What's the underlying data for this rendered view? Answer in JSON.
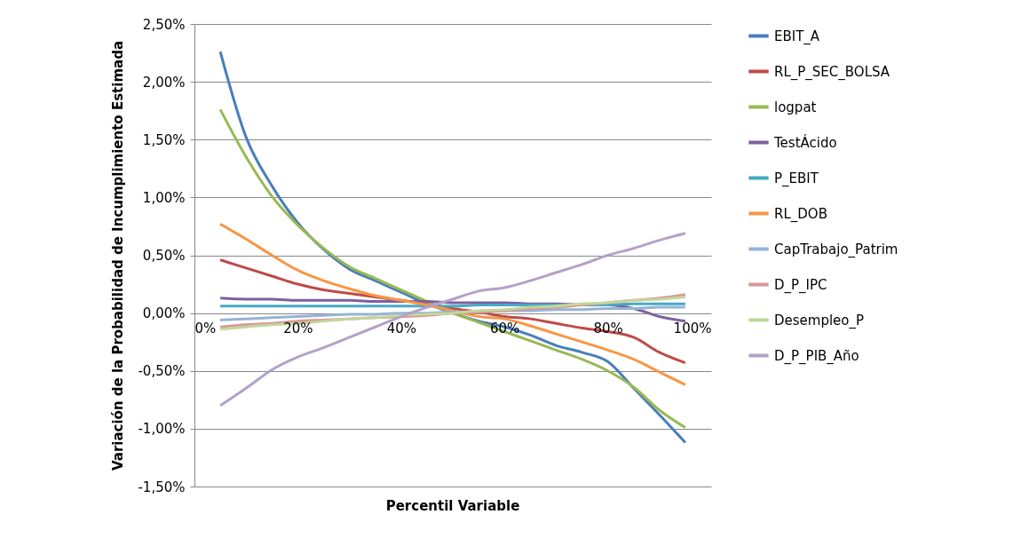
{
  "chart_data": {
    "type": "line",
    "xlabel": "Percentil Variable",
    "ylabel": "Variación de la Probabilidad de Incumplimiento Estimada",
    "x": [
      5,
      10,
      15,
      20,
      25,
      30,
      35,
      40,
      45,
      50,
      55,
      60,
      65,
      70,
      75,
      80,
      85,
      90,
      95
    ],
    "series": [
      {
        "name": "EBIT_A",
        "color": "#4a7ebb",
        "values": [
          2.26,
          1.52,
          1.1,
          0.78,
          0.55,
          0.38,
          0.28,
          0.18,
          0.08,
          0.0,
          -0.07,
          -0.12,
          -0.19,
          -0.28,
          -0.34,
          -0.42,
          -0.65,
          -0.88,
          -1.12
        ]
      },
      {
        "name": "RL_P_SEC_BOLSA",
        "color": "#be4b48",
        "values": [
          0.46,
          0.39,
          0.32,
          0.25,
          0.2,
          0.17,
          0.14,
          0.11,
          0.08,
          0.04,
          0.01,
          -0.03,
          -0.05,
          -0.09,
          -0.13,
          -0.16,
          -0.21,
          -0.34,
          -0.43
        ]
      },
      {
        "name": "logpat",
        "color": "#98b954",
        "values": [
          1.76,
          1.35,
          1.01,
          0.76,
          0.56,
          0.4,
          0.3,
          0.2,
          0.1,
          0.0,
          -0.08,
          -0.16,
          -0.24,
          -0.32,
          -0.4,
          -0.5,
          -0.64,
          -0.84,
          -0.99
        ]
      },
      {
        "name": "TestÁcido",
        "color": "#7d60a0",
        "values": [
          0.13,
          0.12,
          0.12,
          0.11,
          0.11,
          0.11,
          0.1,
          0.1,
          0.1,
          0.09,
          0.09,
          0.09,
          0.08,
          0.08,
          0.07,
          0.07,
          0.04,
          -0.03,
          -0.07
        ]
      },
      {
        "name": "P_EBIT",
        "color": "#46aac5",
        "values": [
          0.06,
          0.06,
          0.06,
          0.06,
          0.06,
          0.06,
          0.06,
          0.06,
          0.06,
          0.06,
          0.07,
          0.07,
          0.07,
          0.07,
          0.07,
          0.07,
          0.08,
          0.08,
          0.08
        ]
      },
      {
        "name": "RL_DOB",
        "color": "#f79646",
        "values": [
          0.77,
          0.64,
          0.5,
          0.37,
          0.28,
          0.21,
          0.15,
          0.11,
          0.07,
          0.02,
          -0.03,
          -0.05,
          -0.11,
          -0.18,
          -0.25,
          -0.32,
          -0.4,
          -0.51,
          -0.62
        ]
      },
      {
        "name": "CapTrabajo_Patrim",
        "color": "#95b3d7",
        "values": [
          -0.06,
          -0.05,
          -0.04,
          -0.03,
          -0.02,
          -0.01,
          -0.01,
          0.0,
          0.0,
          0.01,
          0.01,
          0.02,
          0.02,
          0.03,
          0.03,
          0.04,
          0.04,
          0.05,
          0.05
        ]
      },
      {
        "name": "D_P_IPC",
        "color": "#d99694",
        "values": [
          -0.12,
          -0.1,
          -0.09,
          -0.07,
          -0.06,
          -0.05,
          -0.04,
          -0.03,
          -0.02,
          0.0,
          0.01,
          0.02,
          0.04,
          0.05,
          0.07,
          0.09,
          0.11,
          0.13,
          0.16
        ]
      },
      {
        "name": "Desempleo_P",
        "color": "#c3d69b",
        "values": [
          -0.14,
          -0.12,
          -0.1,
          -0.09,
          -0.07,
          -0.05,
          -0.04,
          -0.02,
          -0.01,
          0.0,
          0.02,
          0.03,
          0.05,
          0.06,
          0.08,
          0.09,
          0.11,
          0.12,
          0.14
        ]
      },
      {
        "name": "D_P_PIB_Año",
        "color": "#b3a2c7",
        "values": [
          -0.8,
          -0.65,
          -0.49,
          -0.38,
          -0.3,
          -0.21,
          -0.12,
          -0.03,
          0.05,
          0.12,
          0.19,
          0.22,
          0.28,
          0.35,
          0.42,
          0.5,
          0.56,
          0.63,
          0.69
        ]
      }
    ],
    "xlim": [
      0,
      100
    ],
    "xticks": [
      {
        "value": 0,
        "label": "0%"
      },
      {
        "value": 20,
        "label": "20%"
      },
      {
        "value": 40,
        "label": "40%"
      },
      {
        "value": 60,
        "label": "60%"
      },
      {
        "value": 80,
        "label": "80%"
      },
      {
        "value": 100,
        "label": "100%"
      }
    ],
    "ylim": [
      -1.5,
      2.5
    ],
    "yticks": [
      {
        "value": -1.5,
        "label": "-1,50%"
      },
      {
        "value": -1.0,
        "label": "-1,00%"
      },
      {
        "value": -0.5,
        "label": "-0,50%"
      },
      {
        "value": 0,
        "label": "0,00%"
      },
      {
        "value": 0.5,
        "label": "0,50%"
      },
      {
        "value": 1.0,
        "label": "1,00%"
      },
      {
        "value": 1.5,
        "label": "1,50%"
      },
      {
        "value": 2.0,
        "label": "2,00%"
      },
      {
        "value": 2.5,
        "label": "2,50%"
      }
    ],
    "grid": "y",
    "legend": "right",
    "line_style": "solid",
    "marker": "none"
  }
}
